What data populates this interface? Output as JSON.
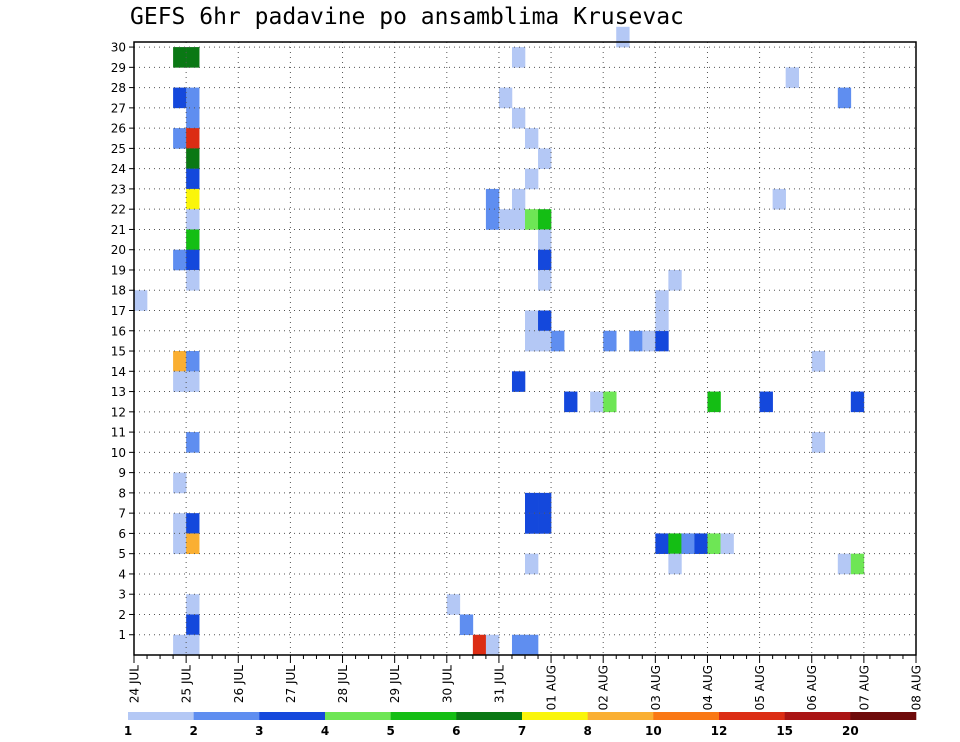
{
  "chart_data": {
    "type": "heatmap",
    "title": "GEFS 6hr padavine po ansamblima Krusevac",
    "x_tick_labels": [
      "24 JUL",
      "25 JUL",
      "26 JUL",
      "27 JUL",
      "28 JUL",
      "29 JUL",
      "30 JUL",
      "31 JUL",
      "01 AUG",
      "02 AUG",
      "03 AUG",
      "04 AUG",
      "05 AUG",
      "06 AUG",
      "07 AUG",
      "08 AUG"
    ],
    "y_tick_labels": [
      "1",
      "2",
      "3",
      "4",
      "5",
      "6",
      "7",
      "8",
      "9",
      "10",
      "11",
      "12",
      "13",
      "14",
      "15",
      "16",
      "17",
      "18",
      "19",
      "20",
      "21",
      "22",
      "23",
      "24",
      "25",
      "26",
      "27",
      "28",
      "29",
      "30"
    ],
    "x_range_steps": [
      0,
      60
    ],
    "y_range": [
      0,
      30
    ],
    "grid": true,
    "colorbar": {
      "labels": [
        "1",
        "2",
        "3",
        "4",
        "5",
        "6",
        "7",
        "8",
        "10",
        "12",
        "15",
        "20"
      ],
      "colors": [
        "#b4c8f5",
        "#5f8ef0",
        "#1448dc",
        "#6ee655",
        "#14be14",
        "#0a7814",
        "#faf50a",
        "#faaf32",
        "#fa7814",
        "#dc2d14",
        "#aa1414",
        "#6e0a0a"
      ]
    },
    "cells": [
      {
        "t": 3,
        "m": 30,
        "c": 5
      },
      {
        "t": 4,
        "m": 30,
        "c": 5
      },
      {
        "t": 3,
        "m": 28,
        "c": 2
      },
      {
        "t": 4,
        "m": 28,
        "c": 1
      },
      {
        "t": 4,
        "m": 27,
        "c": 1
      },
      {
        "t": 3,
        "m": 26,
        "c": 1
      },
      {
        "t": 4,
        "m": 26,
        "c": 9
      },
      {
        "t": 4,
        "m": 25,
        "c": 5
      },
      {
        "t": 4,
        "m": 24,
        "c": 2
      },
      {
        "t": 4,
        "m": 23,
        "c": 6
      },
      {
        "t": 4,
        "m": 22,
        "c": 0
      },
      {
        "t": 4,
        "m": 21,
        "c": 4
      },
      {
        "t": 3,
        "m": 20,
        "c": 1
      },
      {
        "t": 4,
        "m": 20,
        "c": 2
      },
      {
        "t": 4,
        "m": 19,
        "c": 0
      },
      {
        "t": 0,
        "m": 18,
        "c": 0
      },
      {
        "t": 3,
        "m": 15,
        "c": 7
      },
      {
        "t": 4,
        "m": 15,
        "c": 1
      },
      {
        "t": 3,
        "m": 14,
        "c": 0
      },
      {
        "t": 4,
        "m": 14,
        "c": 0
      },
      {
        "t": 4,
        "m": 11,
        "c": 1
      },
      {
        "t": 3,
        "m": 9,
        "c": 0
      },
      {
        "t": 3,
        "m": 7,
        "c": 0
      },
      {
        "t": 4,
        "m": 7,
        "c": 2
      },
      {
        "t": 3,
        "m": 6,
        "c": 0
      },
      {
        "t": 4,
        "m": 6,
        "c": 7
      },
      {
        "t": 4,
        "m": 3,
        "c": 0
      },
      {
        "t": 4,
        "m": 2,
        "c": 2
      },
      {
        "t": 3,
        "m": 1,
        "c": 0
      },
      {
        "t": 4,
        "m": 1,
        "c": 0
      },
      {
        "t": 29,
        "m": 30,
        "c": 0
      },
      {
        "t": 28,
        "m": 28,
        "c": 0
      },
      {
        "t": 29,
        "m": 27,
        "c": 0
      },
      {
        "t": 30,
        "m": 26,
        "c": 0
      },
      {
        "t": 31,
        "m": 25,
        "c": 0
      },
      {
        "t": 30,
        "m": 24,
        "c": 0
      },
      {
        "t": 29,
        "m": 23,
        "c": 0
      },
      {
        "t": 27,
        "m": 23,
        "c": 1
      },
      {
        "t": 27,
        "m": 22,
        "c": 1
      },
      {
        "t": 28,
        "m": 22,
        "c": 0
      },
      {
        "t": 29,
        "m": 22,
        "c": 0
      },
      {
        "t": 30,
        "m": 22,
        "c": 3
      },
      {
        "t": 31,
        "m": 22,
        "c": 4
      },
      {
        "t": 31,
        "m": 21,
        "c": 0
      },
      {
        "t": 31,
        "m": 20,
        "c": 2
      },
      {
        "t": 31,
        "m": 19,
        "c": 0
      },
      {
        "t": 30,
        "m": 17,
        "c": 0
      },
      {
        "t": 31,
        "m": 17,
        "c": 2
      },
      {
        "t": 31,
        "m": 16,
        "c": 0
      },
      {
        "t": 30,
        "m": 16,
        "c": 0
      },
      {
        "t": 29,
        "m": 14,
        "c": 2
      },
      {
        "t": 25,
        "m": 2,
        "c": 1
      },
      {
        "t": 26,
        "m": 1,
        "c": 9
      },
      {
        "t": 27,
        "m": 1,
        "c": 0
      },
      {
        "t": 29,
        "m": 1,
        "c": 1
      },
      {
        "t": 30,
        "m": 1,
        "c": 1
      },
      {
        "t": 24,
        "m": 3,
        "c": 0
      },
      {
        "t": 30,
        "m": 8,
        "c": 2
      },
      {
        "t": 31,
        "m": 8,
        "c": 2
      },
      {
        "t": 30,
        "m": 7,
        "c": 2
      },
      {
        "t": 31,
        "m": 7,
        "c": 2
      },
      {
        "t": 30,
        "m": 5,
        "c": 0
      },
      {
        "t": 32,
        "m": 16,
        "c": 1
      },
      {
        "t": 33,
        "m": 13,
        "c": 2
      },
      {
        "t": 35,
        "m": 13,
        "c": 0
      },
      {
        "t": 36,
        "m": 13,
        "c": 3
      },
      {
        "t": 36,
        "m": 16,
        "c": 1
      },
      {
        "t": 38,
        "m": 16,
        "c": 1
      },
      {
        "t": 39,
        "m": 16,
        "c": 0
      },
      {
        "t": 40,
        "m": 16,
        "c": 2
      },
      {
        "t": 40,
        "m": 17,
        "c": 0
      },
      {
        "t": 40,
        "m": 18,
        "c": 0
      },
      {
        "t": 41,
        "m": 19,
        "c": 0
      },
      {
        "t": 40,
        "m": 6,
        "c": 2
      },
      {
        "t": 41,
        "m": 6,
        "c": 4
      },
      {
        "t": 42,
        "m": 6,
        "c": 1
      },
      {
        "t": 43,
        "m": 6,
        "c": 2
      },
      {
        "t": 44,
        "m": 6,
        "c": 3
      },
      {
        "t": 45,
        "m": 6,
        "c": 0
      },
      {
        "t": 41,
        "m": 5,
        "c": 0
      },
      {
        "t": 44,
        "m": 13,
        "c": 4
      },
      {
        "t": 48,
        "m": 13,
        "c": 2
      },
      {
        "t": 37,
        "m": 31,
        "c": 0
      },
      {
        "t": 50,
        "m": 29,
        "c": 0
      },
      {
        "t": 49,
        "m": 23,
        "c": 0
      },
      {
        "t": 52,
        "m": 15,
        "c": 0
      },
      {
        "t": 52,
        "m": 11,
        "c": 0
      },
      {
        "t": 54,
        "m": 28,
        "c": 1
      },
      {
        "t": 55,
        "m": 13,
        "c": 2
      },
      {
        "t": 54,
        "m": 5,
        "c": 0
      },
      {
        "t": 55,
        "m": 5,
        "c": 3
      }
    ]
  }
}
